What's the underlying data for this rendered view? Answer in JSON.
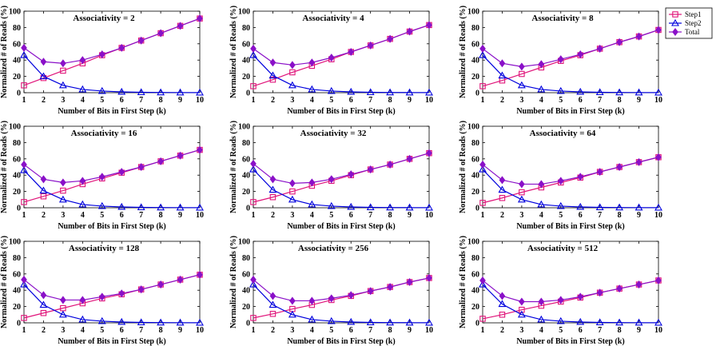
{
  "chart_data": [
    {
      "type": "line",
      "title": "Associativity = 2",
      "xlabel": "Number of Bits in First Step (k)",
      "ylabel": "Normalized # of Reads (%)",
      "x": [
        1,
        2,
        3,
        4,
        5,
        6,
        7,
        8,
        9,
        10
      ],
      "xticks": [
        "1",
        "2",
        "3",
        "4",
        "5",
        "6",
        "7",
        "8",
        "9",
        "10"
      ],
      "yticks": [
        "0",
        "20",
        "40",
        "60",
        "80",
        "100"
      ],
      "xlim": [
        1,
        10
      ],
      "ylim": [
        0,
        100
      ],
      "series": [
        {
          "name": "Step1",
          "values": [
            9,
            18,
            27,
            36,
            46,
            55,
            64,
            73,
            82,
            91
          ]
        },
        {
          "name": "Step2",
          "values": [
            46,
            20,
            9,
            4,
            2,
            1,
            0.5,
            0.3,
            0.2,
            0.1
          ]
        },
        {
          "name": "Total",
          "values": [
            55,
            38,
            36,
            40,
            47,
            55,
            64,
            73,
            82,
            91
          ]
        }
      ]
    },
    {
      "type": "line",
      "title": "Associativity = 4",
      "xlabel": "Number of Bits in First Step (k)",
      "ylabel": "Normalized # of Reads (%)",
      "x": [
        1,
        2,
        3,
        4,
        5,
        6,
        7,
        8,
        9,
        10
      ],
      "xticks": [
        "1",
        "2",
        "3",
        "4",
        "5",
        "6",
        "7",
        "8",
        "9",
        "10"
      ],
      "yticks": [
        "0",
        "20",
        "40",
        "60",
        "80",
        "100"
      ],
      "xlim": [
        1,
        10
      ],
      "ylim": [
        0,
        100
      ],
      "series": [
        {
          "name": "Step1",
          "values": [
            8,
            16,
            25,
            33,
            41,
            50,
            58,
            66,
            75,
            83
          ]
        },
        {
          "name": "Step2",
          "values": [
            46,
            21,
            9,
            4,
            2,
            1,
            0.5,
            0.3,
            0.2,
            0.1
          ]
        },
        {
          "name": "Total",
          "values": [
            54,
            37,
            34,
            37,
            43,
            50,
            58,
            66,
            75,
            83
          ]
        }
      ]
    },
    {
      "type": "line",
      "title": "Associativity = 8",
      "xlabel": "Number of Bits in First Step (k)",
      "ylabel": "Normalized # of Reads (%)",
      "x": [
        1,
        2,
        3,
        4,
        5,
        6,
        7,
        8,
        9,
        10
      ],
      "xticks": [
        "1",
        "2",
        "3",
        "4",
        "5",
        "6",
        "7",
        "8",
        "9",
        "10"
      ],
      "yticks": [
        "0",
        "20",
        "40",
        "60",
        "80",
        "100"
      ],
      "xlim": [
        1,
        10
      ],
      "ylim": [
        0,
        100
      ],
      "series": [
        {
          "name": "Step1",
          "values": [
            8,
            15,
            23,
            31,
            39,
            46,
            54,
            62,
            69,
            77
          ]
        },
        {
          "name": "Step2",
          "values": [
            46,
            21,
            9,
            4,
            2,
            1,
            0.5,
            0.3,
            0.2,
            0.1
          ]
        },
        {
          "name": "Total",
          "values": [
            54,
            36,
            32,
            35,
            41,
            47,
            54,
            62,
            69,
            77
          ]
        }
      ]
    },
    {
      "type": "line",
      "title": "Associativity = 16",
      "xlabel": "Number of Bits in First Step (k)",
      "ylabel": "Normalized # of Reads (%)",
      "x": [
        1,
        2,
        3,
        4,
        5,
        6,
        7,
        8,
        9,
        10
      ],
      "xticks": [
        "1",
        "2",
        "3",
        "4",
        "5",
        "6",
        "7",
        "8",
        "9",
        "10"
      ],
      "yticks": [
        "0",
        "20",
        "40",
        "60",
        "80",
        "100"
      ],
      "xlim": [
        1,
        10
      ],
      "ylim": [
        0,
        100
      ],
      "series": [
        {
          "name": "Step1",
          "values": [
            7,
            14,
            21,
            29,
            36,
            43,
            50,
            57,
            64,
            71
          ]
        },
        {
          "name": "Step2",
          "values": [
            46,
            21,
            10,
            4,
            2,
            1,
            0.5,
            0.3,
            0.2,
            0.1
          ]
        },
        {
          "name": "Total",
          "values": [
            53,
            35,
            31,
            33,
            38,
            44,
            50,
            57,
            64,
            71
          ]
        }
      ]
    },
    {
      "type": "line",
      "title": "Associativity = 32",
      "xlabel": "Number of Bits in First Step (k)",
      "ylabel": "Normalized # of Reads (%)",
      "x": [
        1,
        2,
        3,
        4,
        5,
        6,
        7,
        8,
        9,
        10
      ],
      "xticks": [
        "1",
        "2",
        "3",
        "4",
        "5",
        "6",
        "7",
        "8",
        "9",
        "10"
      ],
      "yticks": [
        "0",
        "20",
        "40",
        "60",
        "80",
        "100"
      ],
      "xlim": [
        1,
        10
      ],
      "ylim": [
        0,
        100
      ],
      "series": [
        {
          "name": "Step1",
          "values": [
            7,
            13,
            20,
            27,
            33,
            40,
            47,
            53,
            60,
            67
          ]
        },
        {
          "name": "Step2",
          "values": [
            47,
            22,
            10,
            4,
            2,
            1,
            0.5,
            0.3,
            0.2,
            0.1
          ]
        },
        {
          "name": "Total",
          "values": [
            54,
            35,
            30,
            31,
            35,
            41,
            47,
            53,
            60,
            67
          ]
        }
      ]
    },
    {
      "type": "line",
      "title": "Associativity = 64",
      "xlabel": "Number of Bits in First Step (k)",
      "ylabel": "Normalized # of Reads (%)",
      "x": [
        1,
        2,
        3,
        4,
        5,
        6,
        7,
        8,
        9,
        10
      ],
      "xticks": [
        "1",
        "2",
        "3",
        "4",
        "5",
        "6",
        "7",
        "8",
        "9",
        "10"
      ],
      "yticks": [
        "0",
        "20",
        "40",
        "60",
        "80",
        "100"
      ],
      "xlim": [
        1,
        10
      ],
      "ylim": [
        0,
        100
      ],
      "series": [
        {
          "name": "Step1",
          "values": [
            6,
            12,
            19,
            25,
            31,
            37,
            44,
            50,
            56,
            62
          ]
        },
        {
          "name": "Step2",
          "values": [
            47,
            22,
            10,
            4,
            2,
            1,
            0.5,
            0.3,
            0.2,
            0.1
          ]
        },
        {
          "name": "Total",
          "values": [
            53,
            34,
            29,
            29,
            33,
            38,
            44,
            50,
            56,
            62
          ]
        }
      ]
    },
    {
      "type": "line",
      "title": "Associativity = 128",
      "xlabel": "Number of Bits in First Step (k)",
      "ylabel": "Normalized # of Reads (%)",
      "x": [
        1,
        2,
        3,
        4,
        5,
        6,
        7,
        8,
        9,
        10
      ],
      "xticks": [
        "1",
        "2",
        "3",
        "4",
        "5",
        "6",
        "7",
        "8",
        "9",
        "10"
      ],
      "yticks": [
        "0",
        "20",
        "40",
        "60",
        "80",
        "100"
      ],
      "xlim": [
        1,
        10
      ],
      "ylim": [
        0,
        100
      ],
      "series": [
        {
          "name": "Step1",
          "values": [
            6,
            12,
            18,
            24,
            30,
            35,
            41,
            47,
            53,
            59
          ]
        },
        {
          "name": "Step2",
          "values": [
            47,
            22,
            10,
            4,
            2,
            1,
            0.5,
            0.3,
            0.2,
            0.1
          ]
        },
        {
          "name": "Total",
          "values": [
            53,
            34,
            28,
            28,
            32,
            36,
            41,
            47,
            53,
            59
          ]
        }
      ]
    },
    {
      "type": "line",
      "title": "Associativity = 256",
      "xlabel": "Number of Bits in First Step (k)",
      "ylabel": "Normalized # of Reads (%)",
      "x": [
        1,
        2,
        3,
        4,
        5,
        6,
        7,
        8,
        9,
        10
      ],
      "xticks": [
        "1",
        "2",
        "3",
        "4",
        "5",
        "6",
        "7",
        "8",
        "9",
        "10"
      ],
      "yticks": [
        "0",
        "20",
        "40",
        "60",
        "80",
        "100"
      ],
      "xlim": [
        1,
        10
      ],
      "ylim": [
        0,
        100
      ],
      "series": [
        {
          "name": "Step1",
          "values": [
            6,
            11,
            17,
            22,
            28,
            33,
            39,
            44,
            50,
            55
          ]
        },
        {
          "name": "Step2",
          "values": [
            47,
            22,
            10,
            4,
            2,
            1,
            0.5,
            0.3,
            0.2,
            0.1
          ]
        },
        {
          "name": "Total",
          "values": [
            53,
            33,
            27,
            27,
            30,
            34,
            39,
            44,
            50,
            55
          ]
        }
      ]
    },
    {
      "type": "line",
      "title": "Associativity = 512",
      "xlabel": "Number of Bits in First Step (k)",
      "ylabel": "Normalized # of Reads (%)",
      "x": [
        1,
        2,
        3,
        4,
        5,
        6,
        7,
        8,
        9,
        10
      ],
      "xticks": [
        "1",
        "2",
        "3",
        "4",
        "5",
        "6",
        "7",
        "8",
        "9",
        "10"
      ],
      "yticks": [
        "0",
        "20",
        "40",
        "60",
        "80",
        "100"
      ],
      "xlim": [
        1,
        10
      ],
      "ylim": [
        0,
        100
      ],
      "series": [
        {
          "name": "Step1",
          "values": [
            5,
            10,
            16,
            21,
            26,
            31,
            37,
            42,
            47,
            52
          ]
        },
        {
          "name": "Step2",
          "values": [
            47,
            23,
            10,
            4,
            2,
            1,
            0.5,
            0.3,
            0.2,
            0.1
          ]
        },
        {
          "name": "Total",
          "values": [
            52,
            33,
            26,
            26,
            28,
            32,
            37,
            42,
            47,
            52
          ]
        }
      ]
    }
  ],
  "legend": {
    "placement": "top-right",
    "items": [
      {
        "name": "Step1",
        "marker": "square"
      },
      {
        "name": "Step2",
        "marker": "triangle"
      },
      {
        "name": "Total",
        "marker": "diamond"
      }
    ]
  },
  "colors": {
    "Step1": "#e0147a",
    "Step2": "#0000dd",
    "Total": "#8a10c8"
  }
}
